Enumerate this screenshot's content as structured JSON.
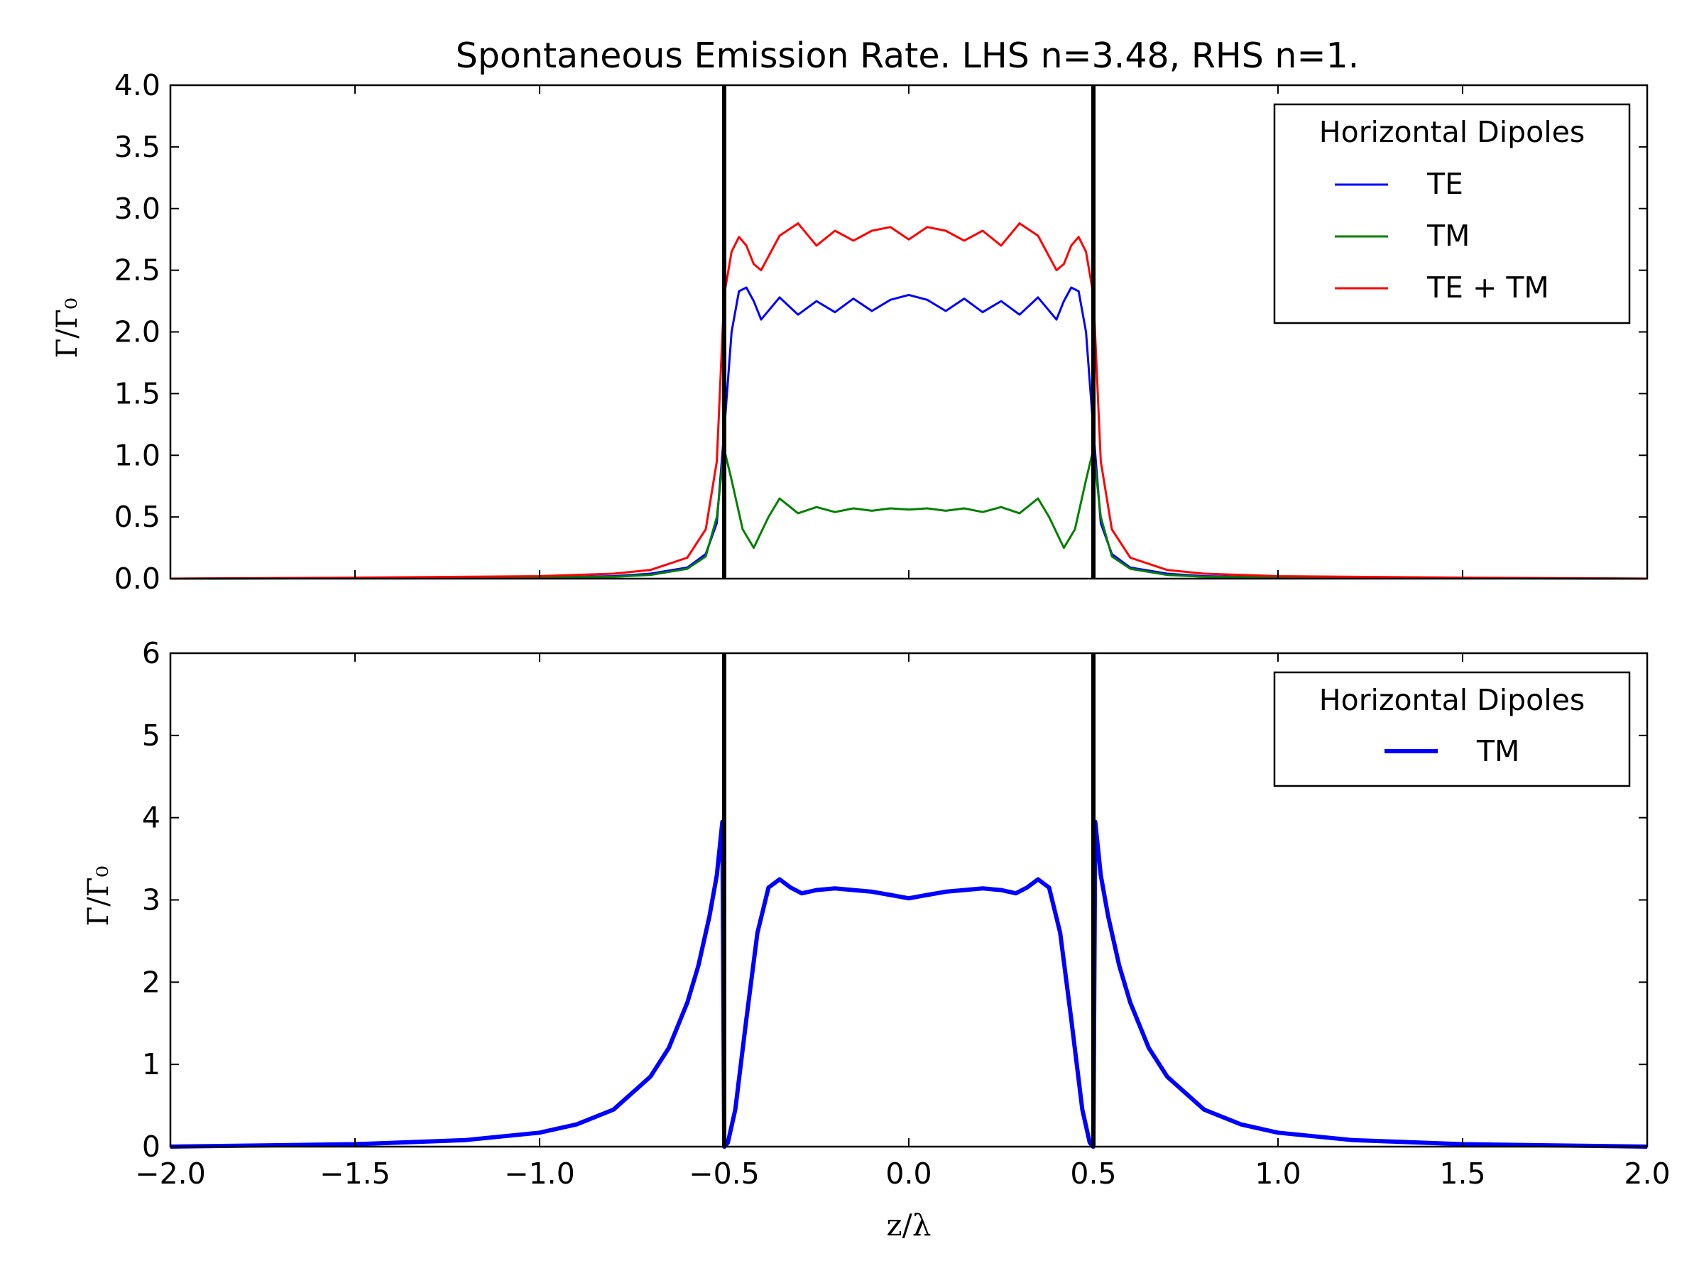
{
  "figure": {
    "title": "Spontaneous Emission Rate. LHS n=3.48, RHS n=1."
  },
  "chart_data": [
    {
      "type": "line",
      "panel": "top",
      "ylabel": "Γ/Γ₀",
      "xlabel": "",
      "xlim": [
        -2.0,
        2.0
      ],
      "ylim": [
        0.0,
        4.0
      ],
      "x_ticks": [
        "−2.0",
        "−1.5",
        "−1.0",
        "−0.5",
        "0.0",
        "0.5",
        "1.0",
        "1.5",
        "2.0"
      ],
      "x_tick_labels_visible": false,
      "y_ticks": [
        "0.0",
        "0.5",
        "1.0",
        "1.5",
        "2.0",
        "2.5",
        "3.0",
        "3.5",
        "4.0"
      ],
      "grid": false,
      "interfaces": [
        -0.5,
        0.5
      ],
      "legend": {
        "title": "Horizontal Dipoles",
        "location": "top-right",
        "entries": [
          "TE",
          "TM",
          "TE + TM"
        ]
      },
      "series": [
        {
          "name": "TE",
          "color": "#0000ff",
          "x": [
            -2.0,
            -1.5,
            -1.0,
            -0.8,
            -0.7,
            -0.6,
            -0.55,
            -0.52,
            -0.5,
            -0.48,
            -0.46,
            -0.44,
            -0.42,
            -0.4,
            -0.35,
            -0.3,
            -0.25,
            -0.2,
            -0.15,
            -0.1,
            -0.05,
            0.0,
            0.05,
            0.1,
            0.15,
            0.2,
            0.25,
            0.3,
            0.35,
            0.4,
            0.42,
            0.44,
            0.46,
            0.48,
            0.5,
            0.52,
            0.55,
            0.6,
            0.7,
            0.8,
            1.0,
            1.5,
            2.0
          ],
          "y": [
            0.0,
            0.005,
            0.01,
            0.02,
            0.04,
            0.09,
            0.2,
            0.45,
            1.2,
            2.0,
            2.33,
            2.36,
            2.25,
            2.1,
            2.28,
            2.14,
            2.25,
            2.16,
            2.27,
            2.17,
            2.26,
            2.3,
            2.26,
            2.17,
            2.27,
            2.16,
            2.25,
            2.14,
            2.28,
            2.1,
            2.25,
            2.36,
            2.33,
            2.0,
            1.2,
            0.45,
            0.2,
            0.09,
            0.04,
            0.02,
            0.01,
            0.005,
            0.0
          ]
        },
        {
          "name": "TM",
          "color": "#008000",
          "x": [
            -2.0,
            -1.5,
            -1.0,
            -0.8,
            -0.7,
            -0.6,
            -0.55,
            -0.52,
            -0.5,
            -0.48,
            -0.45,
            -0.42,
            -0.38,
            -0.35,
            -0.3,
            -0.25,
            -0.2,
            -0.15,
            -0.1,
            -0.05,
            0.0,
            0.05,
            0.1,
            0.15,
            0.2,
            0.25,
            0.3,
            0.35,
            0.38,
            0.42,
            0.45,
            0.48,
            0.5,
            0.52,
            0.55,
            0.6,
            0.7,
            0.8,
            1.0,
            1.5,
            2.0
          ],
          "y": [
            0.0,
            0.004,
            0.008,
            0.015,
            0.03,
            0.08,
            0.18,
            0.5,
            1.05,
            0.8,
            0.4,
            0.25,
            0.5,
            0.65,
            0.53,
            0.58,
            0.54,
            0.57,
            0.55,
            0.57,
            0.56,
            0.57,
            0.55,
            0.57,
            0.54,
            0.58,
            0.53,
            0.65,
            0.5,
            0.25,
            0.4,
            0.8,
            1.05,
            0.5,
            0.18,
            0.08,
            0.03,
            0.015,
            0.008,
            0.004,
            0.0
          ]
        },
        {
          "name": "TE + TM",
          "color": "#ff0000",
          "x": [
            -2.0,
            -1.5,
            -1.0,
            -0.8,
            -0.7,
            -0.6,
            -0.55,
            -0.52,
            -0.5,
            -0.48,
            -0.46,
            -0.44,
            -0.42,
            -0.4,
            -0.35,
            -0.3,
            -0.25,
            -0.2,
            -0.15,
            -0.1,
            -0.05,
            0.0,
            0.05,
            0.1,
            0.15,
            0.2,
            0.25,
            0.3,
            0.35,
            0.4,
            0.42,
            0.44,
            0.46,
            0.48,
            0.5,
            0.52,
            0.55,
            0.6,
            0.7,
            0.8,
            1.0,
            1.5,
            2.0
          ],
          "y": [
            0.0,
            0.008,
            0.02,
            0.04,
            0.07,
            0.17,
            0.4,
            0.95,
            2.3,
            2.65,
            2.77,
            2.7,
            2.55,
            2.5,
            2.78,
            2.88,
            2.7,
            2.82,
            2.74,
            2.82,
            2.85,
            2.75,
            2.85,
            2.82,
            2.74,
            2.82,
            2.7,
            2.88,
            2.78,
            2.5,
            2.55,
            2.7,
            2.77,
            2.65,
            2.3,
            0.95,
            0.4,
            0.17,
            0.07,
            0.04,
            0.02,
            0.008,
            0.0
          ]
        }
      ]
    },
    {
      "type": "line",
      "panel": "bottom",
      "ylabel": "Γ/Γ₀",
      "xlabel": "z/λ",
      "xlim": [
        -2.0,
        2.0
      ],
      "ylim": [
        0,
        6
      ],
      "x_ticks": [
        "−2.0",
        "−1.5",
        "−1.0",
        "−0.5",
        "0.0",
        "0.5",
        "1.0",
        "1.5",
        "2.0"
      ],
      "y_ticks": [
        "0",
        "1",
        "2",
        "3",
        "4",
        "5",
        "6"
      ],
      "grid": false,
      "interfaces": [
        -0.5,
        0.5
      ],
      "legend": {
        "title": "Horizontal Dipoles",
        "location": "top-right",
        "entries": [
          "TM"
        ]
      },
      "series": [
        {
          "name": "TM",
          "color": "#0000ff",
          "x": [
            -2.0,
            -1.5,
            -1.2,
            -1.0,
            -0.9,
            -0.8,
            -0.7,
            -0.65,
            -0.6,
            -0.57,
            -0.54,
            -0.52,
            -0.505,
            -0.5,
            -0.499,
            -0.49,
            -0.47,
            -0.44,
            -0.41,
            -0.38,
            -0.35,
            -0.32,
            -0.29,
            -0.25,
            -0.2,
            -0.15,
            -0.1,
            -0.05,
            0.0,
            0.05,
            0.1,
            0.15,
            0.2,
            0.25,
            0.29,
            0.32,
            0.35,
            0.38,
            0.41,
            0.44,
            0.47,
            0.49,
            0.499,
            0.5,
            0.505,
            0.52,
            0.54,
            0.57,
            0.6,
            0.65,
            0.7,
            0.8,
            0.9,
            1.0,
            1.2,
            1.5,
            2.0
          ],
          "y": [
            0.0,
            0.03,
            0.08,
            0.17,
            0.27,
            0.45,
            0.85,
            1.2,
            1.75,
            2.2,
            2.8,
            3.3,
            3.95,
            0.0,
            0.0,
            0.05,
            0.45,
            1.55,
            2.6,
            3.15,
            3.25,
            3.15,
            3.08,
            3.12,
            3.14,
            3.12,
            3.1,
            3.06,
            3.02,
            3.06,
            3.1,
            3.12,
            3.14,
            3.12,
            3.08,
            3.15,
            3.25,
            3.15,
            2.6,
            1.55,
            0.45,
            0.05,
            0.0,
            0.0,
            3.95,
            3.3,
            2.8,
            2.2,
            1.75,
            1.2,
            0.85,
            0.45,
            0.27,
            0.17,
            0.08,
            0.03,
            0.0
          ]
        }
      ]
    }
  ]
}
